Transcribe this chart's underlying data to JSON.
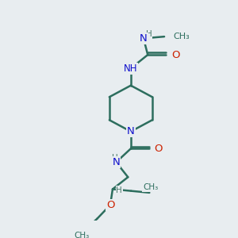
{
  "bg_color": "#e8edf0",
  "atom_colors": {
    "N": "#1010cc",
    "O": "#cc2200",
    "C": "#2d6e5e",
    "H": "#4a7a6a"
  },
  "bond_color": "#2d6e5e",
  "bond_width": 1.8,
  "figsize": [
    3.0,
    3.0
  ],
  "dpi": 100,
  "xlim": [
    0,
    10
  ],
  "ylim": [
    0,
    10
  ]
}
